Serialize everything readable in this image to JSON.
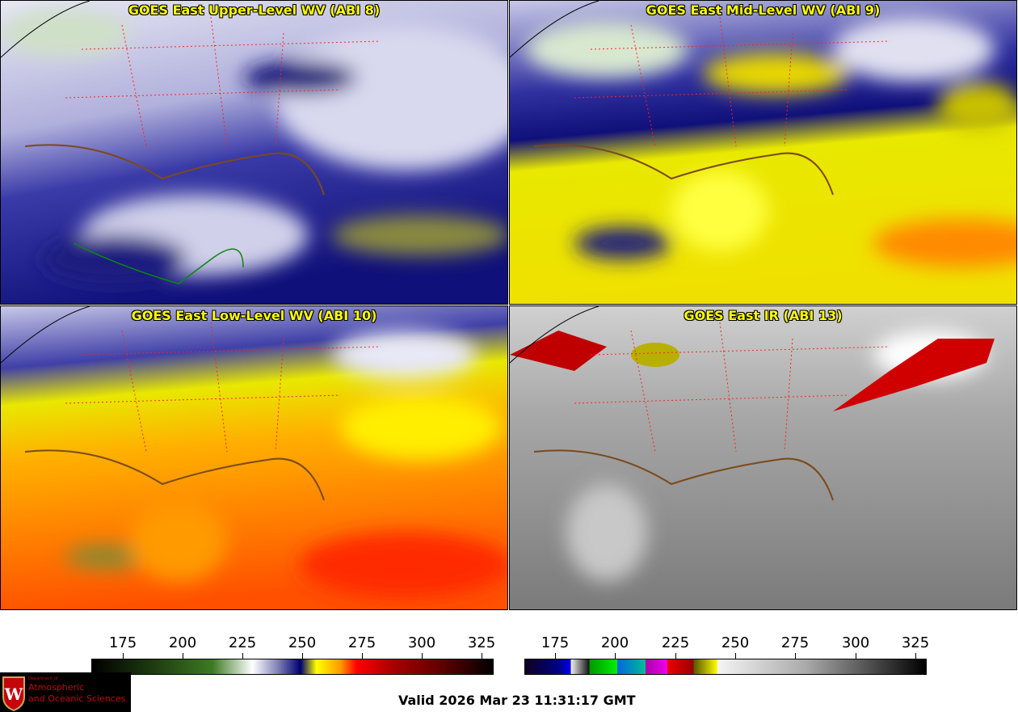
{
  "panels": [
    {
      "title": "GOES East Upper-Level WV (ABI 8)",
      "colormap": "wv"
    },
    {
      "title": "GOES East Mid-Level WV (ABI 9)",
      "colormap": "wv"
    },
    {
      "title": "GOES East Low-Level WV (ABI 10)",
      "colormap": "wv"
    },
    {
      "title": "GOES East IR (ABI 13)",
      "colormap": "ir"
    }
  ],
  "colorbars": [
    {
      "name": "wv",
      "ticks": [
        "175",
        "200",
        "225",
        "250",
        "275",
        "300",
        "325"
      ],
      "range_K": [
        162,
        330
      ],
      "stops": [
        "#000000",
        "#1e3a10",
        "#3c7a22",
        "#ffffff",
        "#8888bb",
        "#00006e",
        "#ffff00",
        "#ff9900",
        "#ff0000",
        "#aa0000",
        "#5a0000",
        "#000000"
      ]
    },
    {
      "name": "ir",
      "ticks": [
        "175",
        "200",
        "225",
        "250",
        "275",
        "300",
        "325"
      ],
      "range_K": [
        162,
        330
      ]
    }
  ],
  "logo": {
    "line1": "Department of",
    "line2": "Atmospheric",
    "line3": "and Oceanic Sciences",
    "emblem": "W"
  },
  "valid_time": "Valid 2026 Mar 23 11:31:17 GMT"
}
